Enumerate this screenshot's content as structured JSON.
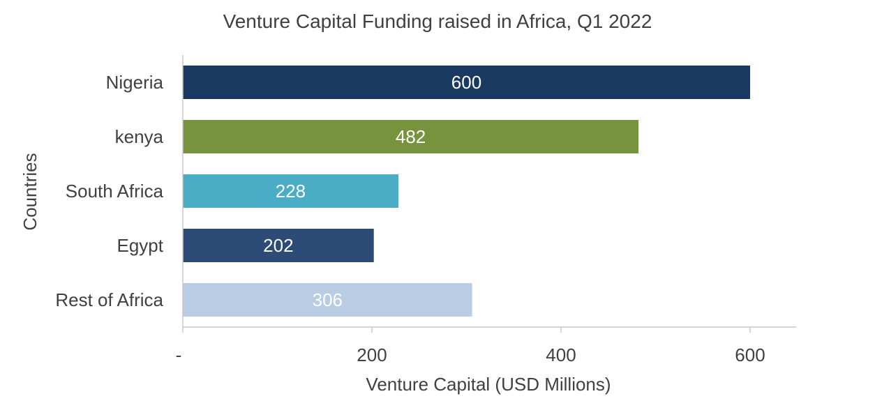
{
  "chart_data": {
    "type": "bar",
    "orientation": "horizontal",
    "title": "Venture Capital Funding raised in Africa, Q1 2022",
    "xlabel": "Venture Capital (USD Millions)",
    "ylabel": "Countries",
    "categories": [
      "Nigeria",
      "kenya",
      "South Africa",
      "Egypt",
      "Rest of Africa"
    ],
    "values": [
      600,
      482,
      228,
      202,
      306
    ],
    "bar_colors": [
      "#1a3960",
      "#78933d",
      "#4bacc6",
      "#2c4c77",
      "#b8cce4"
    ],
    "data_label_color": "#ffffff",
    "xlim": [
      0,
      650
    ],
    "x_ticks": [
      {
        "value": 0,
        "label": "-"
      },
      {
        "value": 200,
        "label": "200"
      },
      {
        "value": 400,
        "label": "400"
      },
      {
        "value": 600,
        "label": "600"
      }
    ],
    "grid": false,
    "legend": "none",
    "axis_color": "#c8c8c8",
    "text_color": "#404040"
  }
}
